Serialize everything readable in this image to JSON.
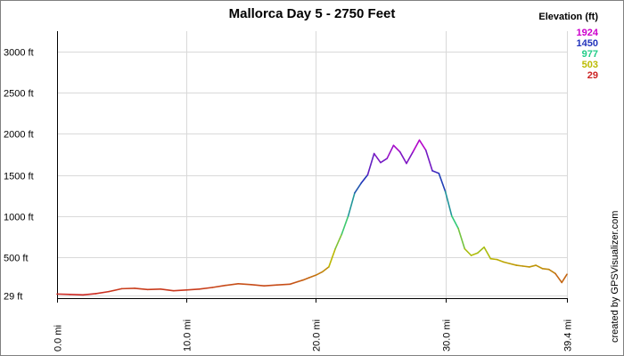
{
  "colors": {
    "background": "#ffffff",
    "grid": "#d9d9d9",
    "axis": "#000000"
  },
  "chart_data": {
    "type": "line",
    "title": "Mallorca Day 5 - 2750 Feet",
    "xlabel": "",
    "ylabel": "",
    "xlim": [
      0,
      39.4
    ],
    "ylim": [
      0,
      3250
    ],
    "y_ticks": [
      29,
      500,
      1000,
      1500,
      2000,
      2500,
      3000
    ],
    "y_tick_labels": [
      "29 ft",
      "500 ft",
      "1000 ft",
      "1500 ft",
      "2000 ft",
      "2500 ft",
      "3000 ft"
    ],
    "x_ticks": [
      0,
      10,
      20,
      30,
      39.4
    ],
    "x_tick_labels": [
      "0.0 mi",
      "10.0 mi",
      "20.0 mi",
      "30.0 mi",
      "39.4 mi"
    ],
    "grid": true,
    "legend": {
      "title": "Elevation (ft)",
      "placement": "top-right",
      "entries": [
        {
          "label": "1924",
          "color": "#cc00cc"
        },
        {
          "label": "1450",
          "color": "#2233bb"
        },
        {
          "label": "977",
          "color": "#22cc88"
        },
        {
          "label": "503",
          "color": "#bbbb00"
        },
        {
          "label": "29",
          "color": "#cc2222"
        }
      ]
    },
    "credit": "created by GPSVisualizer.com",
    "series": [
      {
        "x": [
          0,
          1,
          2,
          3,
          4,
          5,
          6,
          7,
          8,
          9,
          10,
          11,
          12,
          13,
          14,
          15,
          16,
          17,
          18,
          18.6,
          19,
          19.5,
          20,
          20.5,
          21,
          21.5,
          22,
          22.5,
          23,
          23.5,
          24,
          24.5,
          25,
          25.5,
          26,
          26.5,
          27,
          27.5,
          28,
          28.5,
          29,
          29.5,
          30,
          30.5,
          31,
          31.5,
          32,
          32.5,
          33,
          33.5,
          34,
          34.5,
          35,
          35.5,
          36,
          36.5,
          37,
          37.5,
          38,
          38.5,
          39,
          39.4
        ],
        "y": [
          50,
          45,
          40,
          55,
          80,
          115,
          120,
          105,
          110,
          90,
          100,
          110,
          130,
          155,
          175,
          165,
          150,
          160,
          170,
          200,
          220,
          250,
          280,
          320,
          380,
          600,
          780,
          1000,
          1280,
          1400,
          1500,
          1760,
          1650,
          1700,
          1860,
          1780,
          1640,
          1780,
          1924,
          1800,
          1550,
          1520,
          1300,
          1000,
          850,
          600,
          520,
          550,
          620,
          480,
          470,
          440,
          420,
          400,
          390,
          380,
          400,
          360,
          350,
          300,
          190,
          290
        ]
      }
    ]
  }
}
